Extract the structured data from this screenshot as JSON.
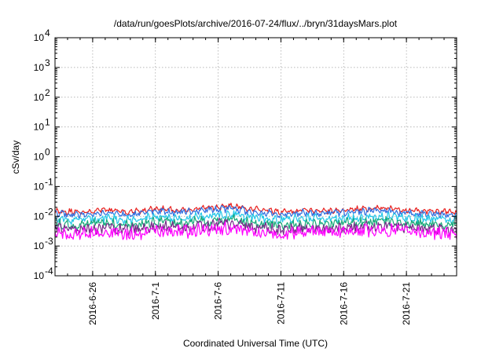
{
  "chart_data": {
    "type": "line",
    "title": "/data/run/goesPlots/archive/2016-07-24/flux/../bryn/31daysMars.plot",
    "xlabel": "Coordinated Universal Time (UTC)",
    "ylabel": "cSv/day",
    "yscale": "log",
    "ylim": [
      0.0001,
      10000
    ],
    "xlim": [
      "2016-06-23",
      "2016-07-25"
    ],
    "x_ticks": [
      "2016-6-26",
      "2016-7-1",
      "2016-7-6",
      "2016-7-11",
      "2016-7-16",
      "2016-7-21"
    ],
    "y_ticks": [
      {
        "base": "10",
        "exp": "-4"
      },
      {
        "base": "10",
        "exp": "-3"
      },
      {
        "base": "10",
        "exp": "-2"
      },
      {
        "base": "10",
        "exp": "-1"
      },
      {
        "base": "10",
        "exp": "0"
      },
      {
        "base": "10",
        "exp": "1"
      },
      {
        "base": "10",
        "exp": "2"
      },
      {
        "base": "10",
        "exp": "3"
      },
      {
        "base": "10",
        "exp": "4"
      }
    ],
    "grid": true,
    "x": [
      "2016-06-23",
      "2016-06-25",
      "2016-06-27",
      "2016-06-29",
      "2016-07-01",
      "2016-07-03",
      "2016-07-05",
      "2016-07-07",
      "2016-07-09",
      "2016-07-11",
      "2016-07-13",
      "2016-07-15",
      "2016-07-17",
      "2016-07-19",
      "2016-07-21",
      "2016-07-23",
      "2016-07-25"
    ],
    "series": [
      {
        "color": "#e8201e",
        "values": [
          0.015,
          0.014,
          0.016,
          0.014,
          0.018,
          0.016,
          0.019,
          0.022,
          0.017,
          0.014,
          0.016,
          0.015,
          0.017,
          0.019,
          0.016,
          0.015,
          0.014
        ]
      },
      {
        "color": "#2f6fe0",
        "values": [
          0.012,
          0.011,
          0.013,
          0.011,
          0.015,
          0.013,
          0.016,
          0.018,
          0.014,
          0.011,
          0.013,
          0.012,
          0.014,
          0.016,
          0.013,
          0.012,
          0.011
        ]
      },
      {
        "color": "#22c7e8",
        "values": [
          0.008,
          0.0075,
          0.0085,
          0.0075,
          0.0095,
          0.0085,
          0.01,
          0.012,
          0.009,
          0.0075,
          0.0085,
          0.008,
          0.009,
          0.01,
          0.0085,
          0.008,
          0.0075
        ]
      },
      {
        "color": "#18a878",
        "values": [
          0.0055,
          0.005,
          0.006,
          0.005,
          0.0065,
          0.006,
          0.007,
          0.0078,
          0.006,
          0.005,
          0.0058,
          0.0055,
          0.006,
          0.007,
          0.0058,
          0.0055,
          0.005
        ]
      },
      {
        "color": "#7a2a8a",
        "values": [
          0.0038,
          0.0035,
          0.0042,
          0.0035,
          0.0046,
          0.0042,
          0.005,
          0.0055,
          0.0043,
          0.0035,
          0.004,
          0.0038,
          0.0043,
          0.005,
          0.0041,
          0.0038,
          0.0035
        ]
      },
      {
        "color": "#ff00ff",
        "values": [
          0.0028,
          0.0025,
          0.003,
          0.0025,
          0.0034,
          0.003,
          0.0036,
          0.004,
          0.0031,
          0.0024,
          0.0029,
          0.0027,
          0.0031,
          0.0036,
          0.003,
          0.0027,
          0.0025
        ]
      }
    ]
  }
}
